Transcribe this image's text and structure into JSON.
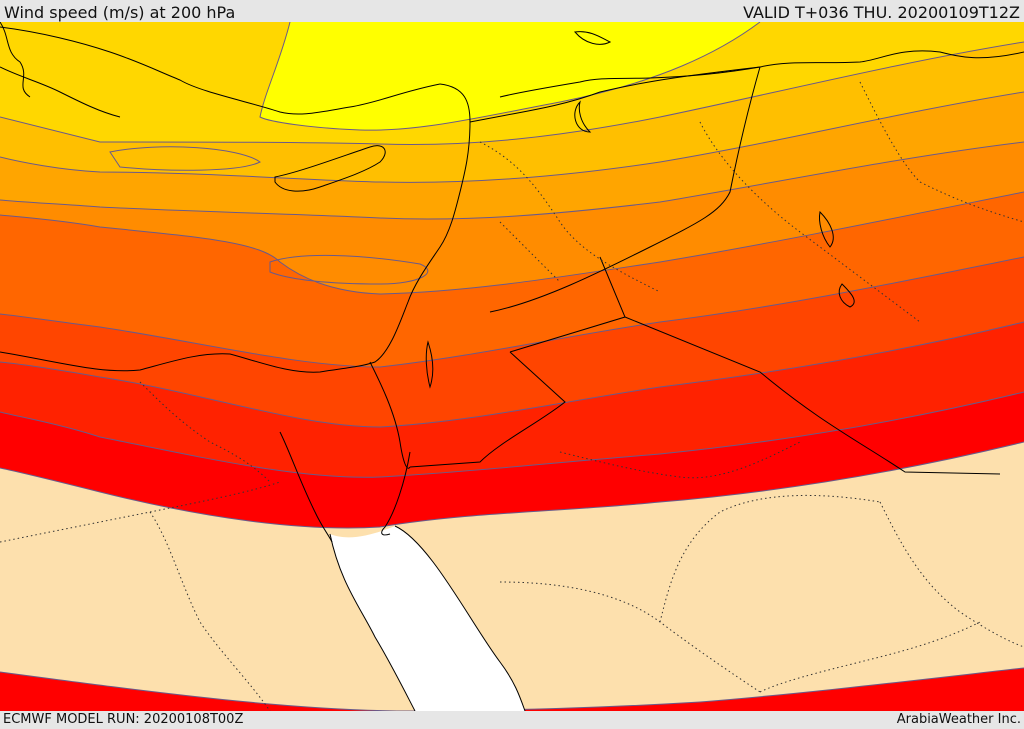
{
  "header": {
    "title": "Wind speed (m/s) at 200 hPa",
    "valid_time": "VALID T+036 THU. 20200109T12Z"
  },
  "footer": {
    "model_run": "ECMWF MODEL RUN: 20200108T00Z",
    "credit": "ArabiaWeather Inc."
  },
  "map": {
    "colors": {
      "band_yellow": "#ffff00",
      "band_gold": "#ffd700",
      "band_amber": "#ffbf00",
      "band_orange_light": "#ffa500",
      "band_orange": "#ff8c00",
      "band_orange_dark": "#ff6600",
      "band_red_orange": "#ff4500",
      "band_red_light": "#ff2200",
      "band_red": "#ff0000",
      "calm_land": "#fde0ad",
      "sea_outside_field": "#ffffff",
      "contour_line": "#6a5a8a",
      "coastline": "#000000",
      "border": "#000000"
    }
  }
}
